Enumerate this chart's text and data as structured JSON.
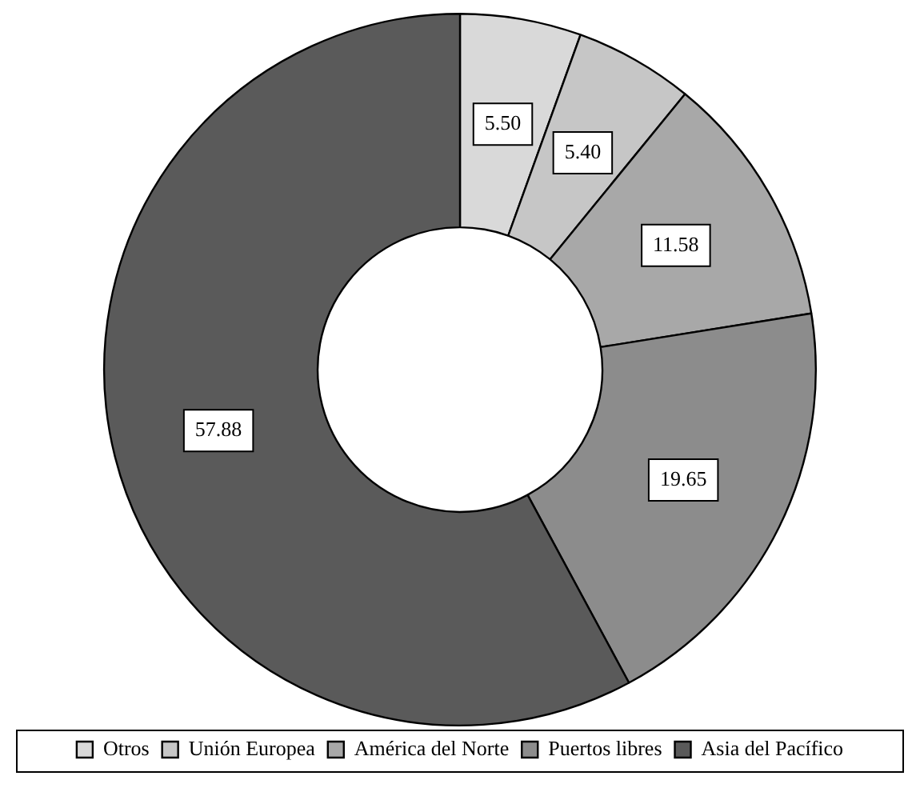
{
  "chart_data": {
    "type": "donut",
    "categories": [
      "Otros",
      "Unión Europea",
      "América del Norte",
      "Puertos libres",
      "Asia del Pacífico"
    ],
    "values": [
      5.5,
      5.4,
      11.58,
      19.65,
      57.88
    ],
    "colors": [
      "#d9d9d9",
      "#c6c6c6",
      "#a8a8a8",
      "#8c8c8c",
      "#5a5a5a"
    ],
    "value_labels": [
      "5.50",
      "5.40",
      "11.58",
      "19.65",
      "57.88"
    ],
    "legend": "bottom"
  }
}
